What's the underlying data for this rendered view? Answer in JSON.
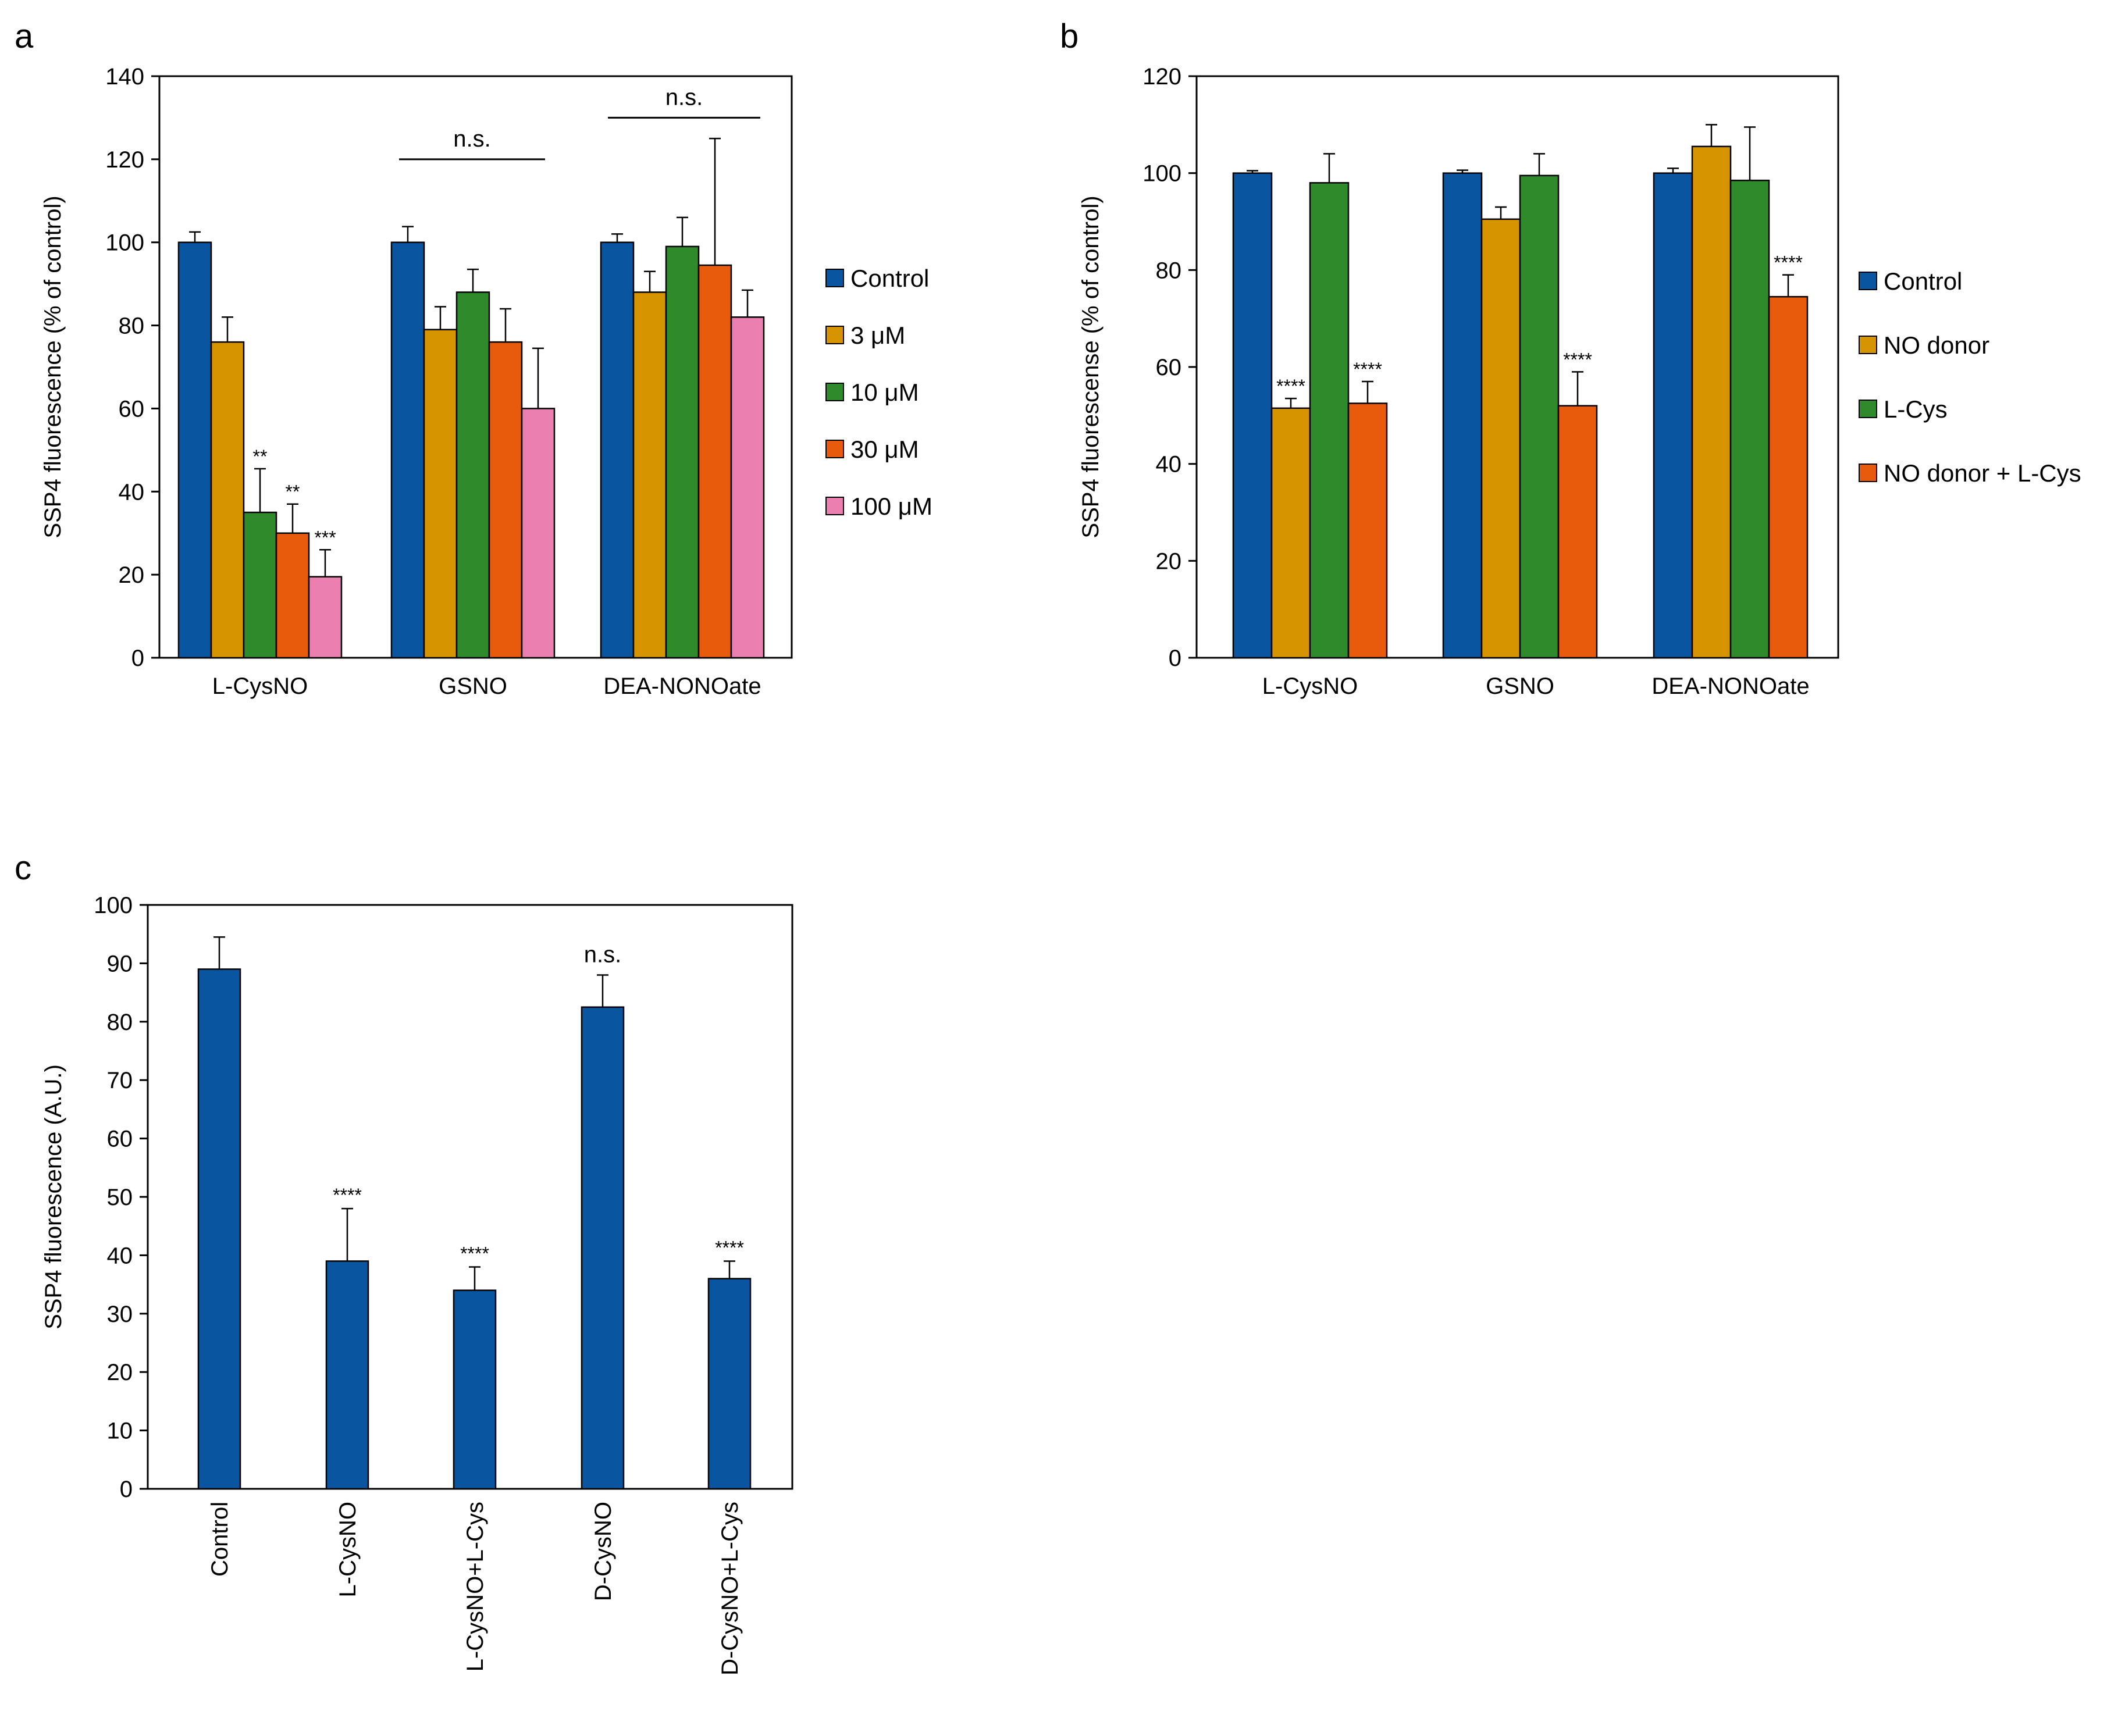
{
  "chart_data": [
    {
      "id": "a",
      "panel_label": "a",
      "type": "bar",
      "ylabel": "SSP4 fluorescence (% of control)",
      "ylim": [
        0,
        140
      ],
      "ytick_step": 20,
      "categories": [
        "L-CysNO",
        "GSNO",
        "DEA-NONOate"
      ],
      "series": [
        {
          "name": "Control",
          "color": "#0A55A0",
          "values": [
            100,
            100,
            100
          ],
          "errors": [
            2.5,
            3.8,
            2.0
          ]
        },
        {
          "name": "3 μM",
          "color": "#D69500",
          "values": [
            76,
            79,
            88
          ],
          "errors": [
            6,
            5.5,
            5
          ]
        },
        {
          "name": "10 μM",
          "color": "#2E8A2B",
          "values": [
            35,
            88,
            99
          ],
          "errors": [
            10.5,
            5.5,
            7
          ]
        },
        {
          "name": "30 μM",
          "color": "#E85B0C",
          "values": [
            30,
            76,
            94.5
          ],
          "errors": [
            7,
            8,
            30.5
          ]
        },
        {
          "name": "100 μM",
          "color": "#EA7FB0",
          "values": [
            19.5,
            60,
            82
          ],
          "errors": [
            6.5,
            14.5,
            6.5
          ]
        }
      ],
      "sig_labels": [
        {
          "text": "**",
          "category": 0,
          "series": 2
        },
        {
          "text": "**",
          "category": 0,
          "series": 3
        },
        {
          "text": "***",
          "category": 0,
          "series": 4
        }
      ],
      "ns_brackets": [
        {
          "text": "n.s.",
          "category": 1,
          "y": 120
        },
        {
          "text": "n.s.",
          "category": 2,
          "y": 130
        }
      ],
      "legend": "right"
    },
    {
      "id": "b",
      "panel_label": "b",
      "type": "bar",
      "ylabel": "SSP4 fluorescense (% of control)",
      "ylim": [
        0,
        120
      ],
      "ytick_step": 20,
      "categories": [
        "L-CysNO",
        "GSNO",
        "DEA-NONOate"
      ],
      "series": [
        {
          "name": "Control",
          "color": "#0A55A0",
          "values": [
            100,
            100,
            100
          ],
          "errors": [
            0.5,
            0.6,
            1.0
          ]
        },
        {
          "name": "NO donor",
          "color": "#D69500",
          "values": [
            51.5,
            90.5,
            105.5
          ],
          "errors": [
            2,
            2.5,
            4.5
          ]
        },
        {
          "name": "L-Cys",
          "color": "#2E8A2B",
          "values": [
            98,
            99.5,
            98.5
          ],
          "errors": [
            6,
            4.5,
            11
          ]
        },
        {
          "name": "NO donor + L-Cys",
          "color": "#E85B0C",
          "values": [
            52.5,
            52,
            74.5
          ],
          "errors": [
            4.5,
            7,
            4.5
          ]
        }
      ],
      "sig_labels": [
        {
          "text": "****",
          "category": 0,
          "series": 1
        },
        {
          "text": "****",
          "category": 0,
          "series": 3
        },
        {
          "text": "****",
          "category": 1,
          "series": 3
        },
        {
          "text": "****",
          "category": 2,
          "series": 3
        }
      ],
      "legend": "right"
    },
    {
      "id": "c",
      "panel_label": "c",
      "type": "bar",
      "ylabel": "SSP4 fluorescence (A.U.)",
      "ylim": [
        0,
        100
      ],
      "ytick_step": 10,
      "categories": [
        "Control",
        "L-CysNO",
        "L-CysNO+L-Cys",
        "D-CysNO",
        "D-CysNO+L-Cys"
      ],
      "series": [
        {
          "name": "SSP4",
          "color": "#0A55A0",
          "values": [
            89,
            39,
            34,
            82.5,
            36
          ],
          "errors": [
            5.5,
            9,
            4,
            5.5,
            3
          ]
        }
      ],
      "bar_labels": [
        "",
        "****",
        "****",
        "n.s.",
        "****"
      ],
      "legend": "none"
    }
  ]
}
